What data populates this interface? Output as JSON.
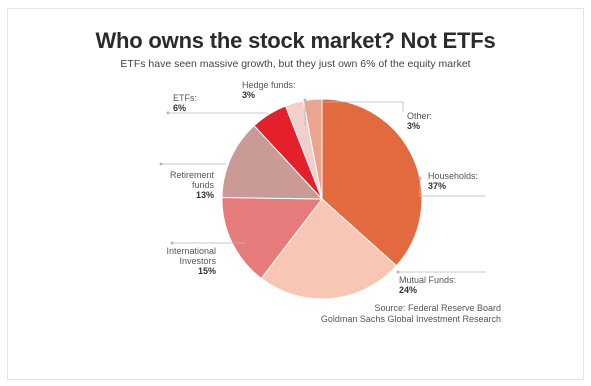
{
  "chart_data": {
    "type": "pie",
    "title": "Who owns the stock market? Not ETFs",
    "subtitle": "ETFs have seen massive growth, but they just own 6% of the equity market",
    "slices": [
      {
        "label": "Households:",
        "value": 37,
        "display": "37%",
        "color": "#e36a3e"
      },
      {
        "label": "Mutual Funds:",
        "value": 24,
        "display": "24%",
        "color": "#f8c6b4"
      },
      {
        "label": "International Investors",
        "value": 15,
        "display": "15%",
        "color": "#e57b7b"
      },
      {
        "label": "Retirement funds",
        "value": 13,
        "display": "13%",
        "color": "#c99a96"
      },
      {
        "label": "ETFs:",
        "value": 6,
        "display": "6%",
        "color": "#e3202b"
      },
      {
        "label": "Hedge funds:",
        "value": 3,
        "display": "3%",
        "color": "#f3cfcc"
      },
      {
        "label": "Other:",
        "value": 3,
        "display": "3%",
        "color": "#e9a58f"
      }
    ],
    "source": [
      "Source: Federal Reserve Board",
      "Goldman Sachs Global Investment Research"
    ]
  }
}
